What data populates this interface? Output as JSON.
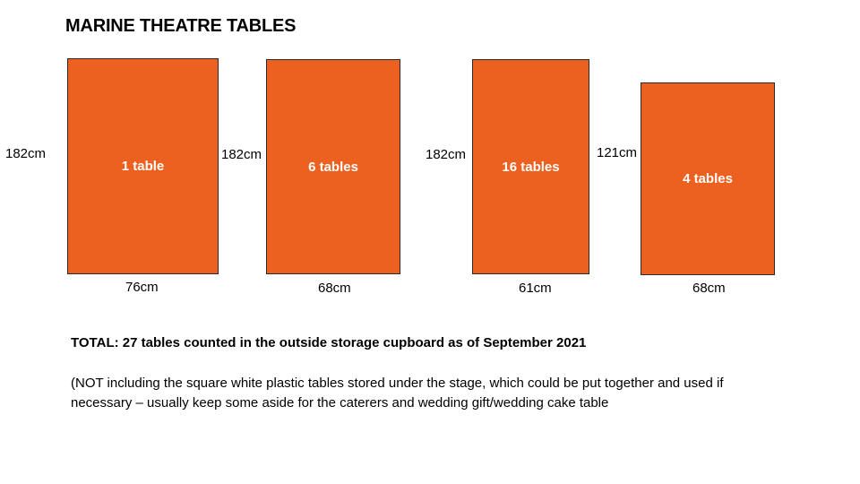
{
  "title": "MARINE THEATRE TABLES",
  "accent_color": "#ED6120",
  "tables": [
    {
      "count_label": "1 table",
      "length_label": "182cm",
      "width_label": "76cm"
    },
    {
      "count_label": "6 tables",
      "length_label": "182cm",
      "width_label": "68cm"
    },
    {
      "count_label": "16 tables",
      "length_label": "182cm",
      "width_label": "61cm"
    },
    {
      "count_label": "4 tables",
      "length_label": "121cm",
      "width_label": "68cm"
    }
  ],
  "total": "TOTAL: 27 tables counted in the outside storage cupboard as of September 2021",
  "note": "(NOT including the square white plastic tables stored under the stage, which could be put together and used if necessary – usually keep some aside for the caterers and wedding gift/wedding cake table"
}
